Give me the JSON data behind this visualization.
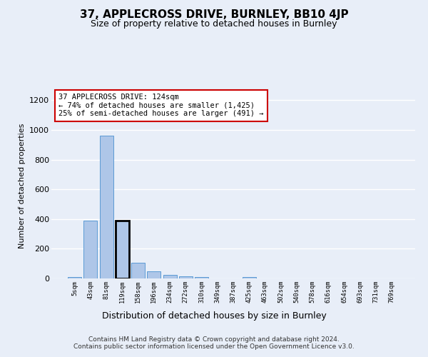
{
  "title1": "37, APPLECROSS DRIVE, BURNLEY, BB10 4JP",
  "title2": "Size of property relative to detached houses in Burnley",
  "xlabel": "Distribution of detached houses by size in Burnley",
  "ylabel": "Number of detached properties",
  "categories": [
    "5sqm",
    "43sqm",
    "81sqm",
    "119sqm",
    "158sqm",
    "196sqm",
    "234sqm",
    "272sqm",
    "310sqm",
    "349sqm",
    "387sqm",
    "425sqm",
    "463sqm",
    "502sqm",
    "540sqm",
    "578sqm",
    "616sqm",
    "654sqm",
    "693sqm",
    "731sqm",
    "769sqm"
  ],
  "values": [
    12,
    390,
    960,
    390,
    105,
    50,
    22,
    15,
    12,
    0,
    0,
    12,
    0,
    0,
    0,
    0,
    0,
    0,
    0,
    0,
    0
  ],
  "bar_color": "#aec6e8",
  "bar_edge_color": "#5b9bd5",
  "highlight_bar_index": 3,
  "highlight_bar_edge_color": "#000000",
  "ylim": [
    0,
    1250
  ],
  "yticks": [
    0,
    200,
    400,
    600,
    800,
    1000,
    1200
  ],
  "annotation_text": "37 APPLECROSS DRIVE: 124sqm\n← 74% of detached houses are smaller (1,425)\n25% of semi-detached houses are larger (491) →",
  "annotation_box_facecolor": "#ffffff",
  "annotation_box_edgecolor": "#cc0000",
  "footer1": "Contains HM Land Registry data © Crown copyright and database right 2024.",
  "footer2": "Contains public sector information licensed under the Open Government Licence v3.0.",
  "bg_color": "#e8eef8",
  "plot_bg_color": "#e8eef8",
  "grid_color": "#ffffff"
}
